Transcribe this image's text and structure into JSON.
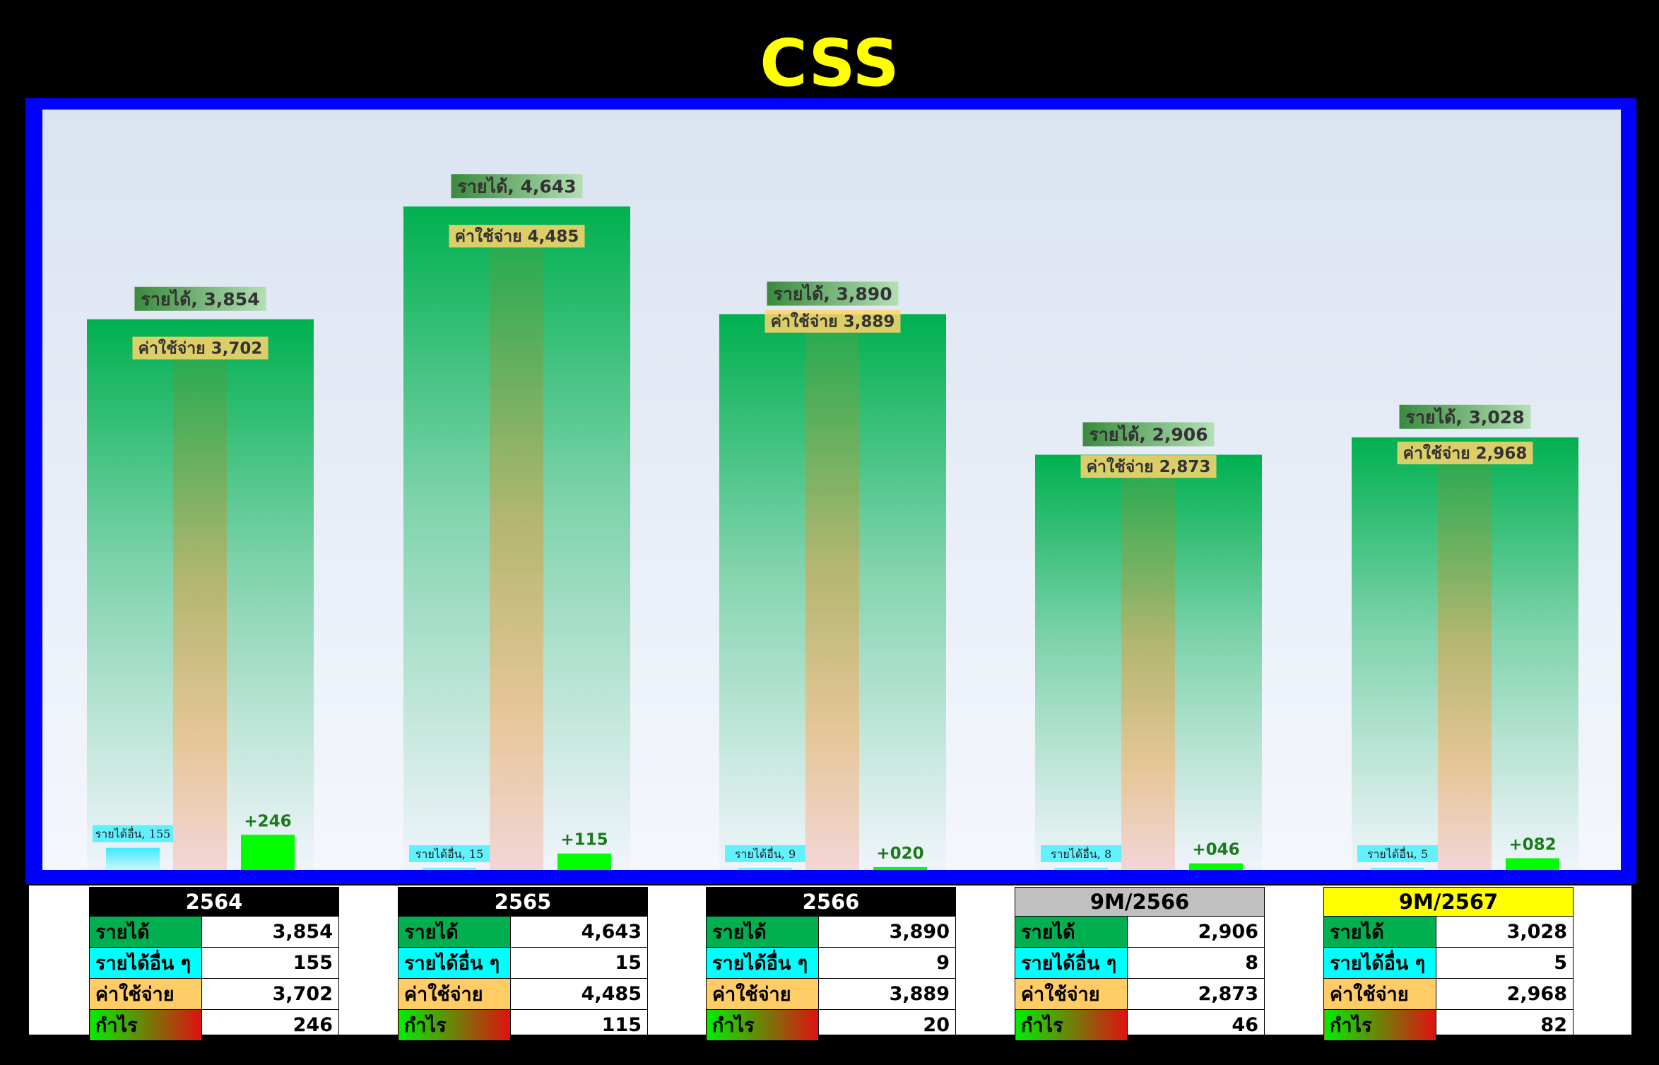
{
  "title": "CSS",
  "labels": {
    "revenue": "รายได้",
    "other_income": "รายได้อื่น ๆ",
    "expense": "ค่าใช้จ่าย",
    "profit": "กำไร"
  },
  "chart_data": {
    "type": "bar",
    "categories": [
      "2564",
      "2565",
      "2566",
      "9M/2566",
      "9M/2567"
    ],
    "series": [
      {
        "name": "รายได้",
        "values": [
          3854,
          4643,
          3890,
          2906,
          3028
        ],
        "color": "#00b050"
      },
      {
        "name": "ค่าใช้จ่าย",
        "values": [
          3702,
          4485,
          3889,
          2873,
          2968
        ],
        "color": "#ffcc66"
      },
      {
        "name": "รายได้อื่น ๆ",
        "values": [
          155,
          15,
          9,
          8,
          5
        ],
        "color": "#00ffff"
      },
      {
        "name": "กำไร",
        "values": [
          246,
          115,
          20,
          46,
          82
        ],
        "color": "#00ff00"
      }
    ],
    "data_labels": {
      "revenue": [
        "รายได้, 3,854",
        "รายได้, 4,643",
        "รายได้, 3,890",
        "รายได้, 2,906",
        "รายได้, 3,028"
      ],
      "expense": [
        "ค่าใช้จ่าย 3,702",
        "ค่าใช้จ่าย 4,485",
        "ค่าใช้จ่าย 3,889",
        "ค่าใช้จ่าย 2,873",
        "ค่าใช้จ่าย 2,968"
      ],
      "other_income": [
        "รายได้อื่น, 155",
        "รายได้อื่น, 15",
        "รายได้อื่น, 9",
        "รายได้อื่น, 8",
        "รายได้อื่น, 5"
      ],
      "profit": [
        "+246",
        "+115",
        "+020",
        "+046",
        "+082"
      ]
    },
    "ylim": [
      0,
      5000
    ],
    "grid": false,
    "legend": "none"
  },
  "tables": [
    {
      "header": "2564",
      "header_bg": "#000000",
      "header_fg": "#ffffff",
      "rows": [
        {
          "key": "revenue",
          "value": "3,854"
        },
        {
          "key": "other_income",
          "value": "155"
        },
        {
          "key": "expense",
          "value": "3,702"
        },
        {
          "key": "profit",
          "value": "246"
        }
      ]
    },
    {
      "header": "2565",
      "header_bg": "#000000",
      "header_fg": "#ffffff",
      "rows": [
        {
          "key": "revenue",
          "value": "4,643"
        },
        {
          "key": "other_income",
          "value": "15"
        },
        {
          "key": "expense",
          "value": "4,485"
        },
        {
          "key": "profit",
          "value": "115"
        }
      ]
    },
    {
      "header": "2566",
      "header_bg": "#000000",
      "header_fg": "#ffffff",
      "rows": [
        {
          "key": "revenue",
          "value": "3,890"
        },
        {
          "key": "other_income",
          "value": "9"
        },
        {
          "key": "expense",
          "value": "3,889"
        },
        {
          "key": "profit",
          "value": "20"
        }
      ]
    },
    {
      "header": "9M/2566",
      "header_bg": "#c0c0c0",
      "header_fg": "#000000",
      "rows": [
        {
          "key": "revenue",
          "value": "2,906"
        },
        {
          "key": "other_income",
          "value": "8"
        },
        {
          "key": "expense",
          "value": "2,873"
        },
        {
          "key": "profit",
          "value": "46"
        }
      ]
    },
    {
      "header": "9M/2567",
      "header_bg": "#ffff00",
      "header_fg": "#000000",
      "rows": [
        {
          "key": "revenue",
          "value": "3,028"
        },
        {
          "key": "other_income",
          "value": "5"
        },
        {
          "key": "expense",
          "value": "2,968"
        },
        {
          "key": "profit",
          "value": "82"
        }
      ]
    }
  ]
}
